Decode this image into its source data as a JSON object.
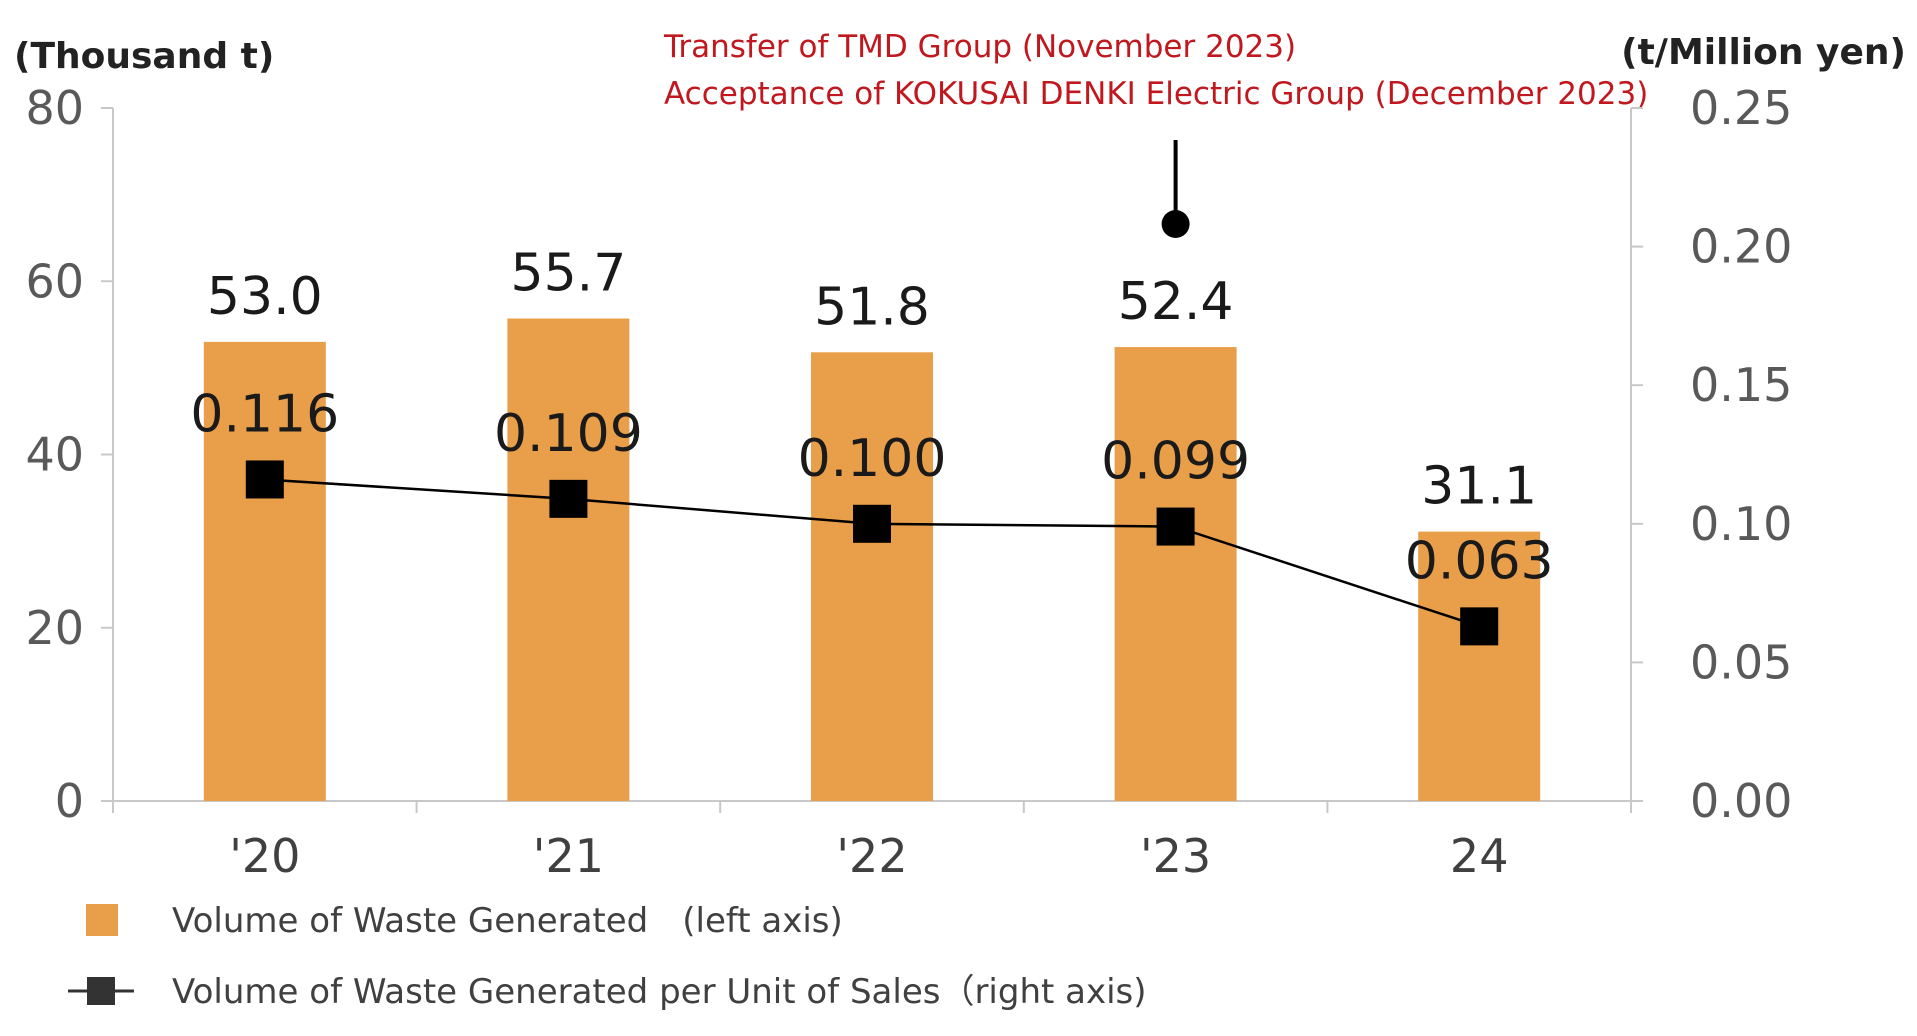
{
  "chart_data": {
    "type": "bar+line",
    "categories": [
      "'20",
      "'21",
      "'22",
      "'23",
      "24"
    ],
    "series": [
      {
        "name": "Volume of Waste Generated　(left axis)",
        "type": "bar",
        "axis": "left",
        "values": [
          53.0,
          55.7,
          51.8,
          52.4,
          31.1
        ],
        "labels": [
          "53.0",
          "55.7",
          "51.8",
          "52.4",
          "31.1"
        ],
        "color": "#e99e4a"
      },
      {
        "name": "Volume of Waste Generated per Unit of Sales（right axis)",
        "type": "line",
        "axis": "right",
        "values": [
          0.116,
          0.109,
          0.1,
          0.099,
          0.063
        ],
        "labels": [
          "0.116",
          "0.109",
          "0.100",
          "0.099",
          "0.063"
        ],
        "color": "#000000"
      }
    ],
    "left_axis": {
      "unit_label": "(Thousand t)",
      "range": [
        0,
        80
      ],
      "ticks": [
        "0",
        "20",
        "40",
        "60",
        "80"
      ]
    },
    "right_axis": {
      "unit_label": "(t/Million yen)",
      "range": [
        0,
        0.25
      ],
      "ticks": [
        "0.00",
        "0.05",
        "0.10",
        "0.15",
        "0.20",
        "0.25"
      ]
    },
    "annotation": {
      "lines": [
        "Transfer of TMD Group (November 2023)",
        "Acceptance of KOKUSAI DENKI Electric Group (December 2023)"
      ],
      "category": "'23",
      "color": "#c0181e"
    },
    "legend_position": "bottom-left",
    "grid": false
  }
}
